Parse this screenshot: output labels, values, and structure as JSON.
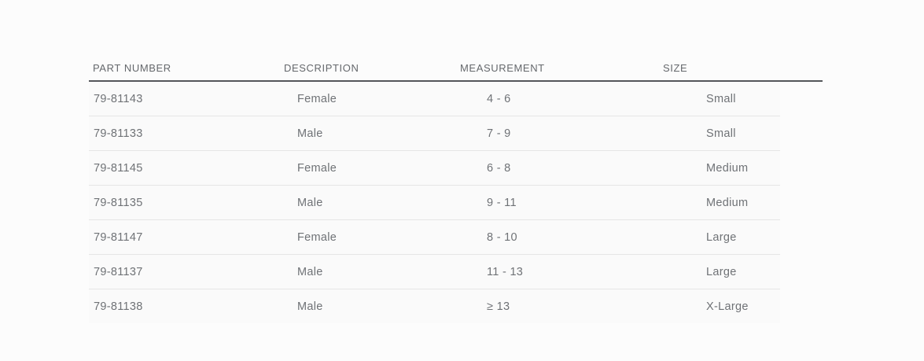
{
  "colors": {
    "page_background": "#fcfcfc",
    "row_background": "#fafafa",
    "header_rule": "#54565a",
    "row_divider": "#e5e5e5",
    "text": "#6f7276"
  },
  "table": {
    "columns": [
      {
        "label": "PART NUMBER"
      },
      {
        "label": "DESCRIPTION"
      },
      {
        "label": "MEASUREMENT"
      },
      {
        "label": "SIZE"
      }
    ],
    "rows": [
      {
        "part_number": "79-81143",
        "description": "Female",
        "measurement": "4 - 6",
        "size": "Small"
      },
      {
        "part_number": "79-81133",
        "description": "Male",
        "measurement": "7 - 9",
        "size": "Small"
      },
      {
        "part_number": "79-81145",
        "description": "Female",
        "measurement": "6 - 8",
        "size": "Medium"
      },
      {
        "part_number": "79-81135",
        "description": "Male",
        "measurement": "9 - 11",
        "size": "Medium"
      },
      {
        "part_number": "79-81147",
        "description": "Female",
        "measurement": "8 - 10",
        "size": "Large"
      },
      {
        "part_number": "79-81137",
        "description": "Male",
        "measurement": "11 - 13",
        "size": "Large"
      },
      {
        "part_number": "79-81138",
        "description": "Male",
        "measurement": "≥ 13",
        "size": "X-Large"
      }
    ]
  }
}
